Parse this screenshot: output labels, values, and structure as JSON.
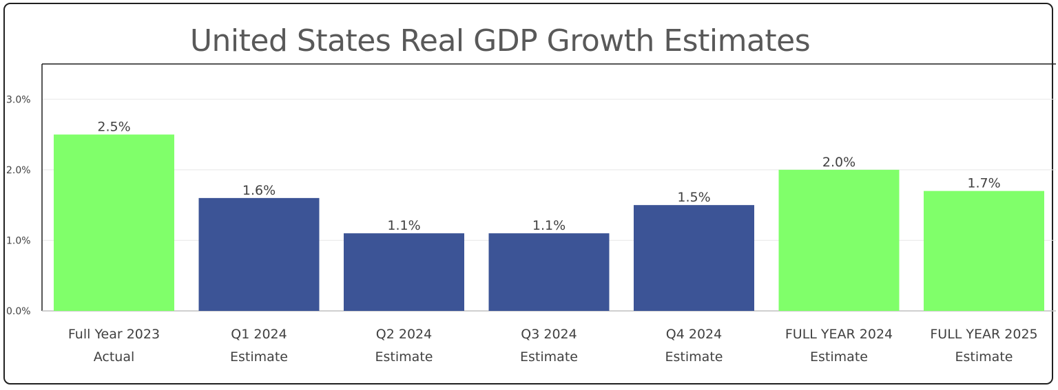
{
  "chart_data": {
    "type": "bar",
    "title": "United States Real GDP Growth Estimates",
    "xlabel": "",
    "ylabel": "",
    "ylim": [
      0,
      3.5
    ],
    "yticks": [
      0.0,
      1.0,
      2.0,
      3.0
    ],
    "ytick_labels": [
      "0.0%",
      "1.0%",
      "2.0%",
      "3.0%"
    ],
    "grid": true,
    "legend": "none",
    "categories": [
      [
        "Full Year 2023",
        "Actual"
      ],
      [
        "Q1 2024",
        "Estimate"
      ],
      [
        "Q2 2024",
        "Estimate"
      ],
      [
        "Q3 2024",
        "Estimate"
      ],
      [
        "Q4 2024",
        "Estimate"
      ],
      [
        "FULL YEAR 2024",
        "Estimate"
      ],
      [
        "FULL YEAR 2025",
        "Estimate"
      ]
    ],
    "values": [
      2.5,
      1.6,
      1.1,
      1.1,
      1.5,
      2.0,
      1.7
    ],
    "data_labels": [
      "2.5%",
      "1.6%",
      "1.1%",
      "1.1%",
      "1.5%",
      "2.0%",
      "1.7%"
    ],
    "bar_colors": [
      "#80ff6a",
      "#3c5496",
      "#3c5496",
      "#3c5496",
      "#3c5496",
      "#80ff6a",
      "#80ff6a"
    ]
  }
}
